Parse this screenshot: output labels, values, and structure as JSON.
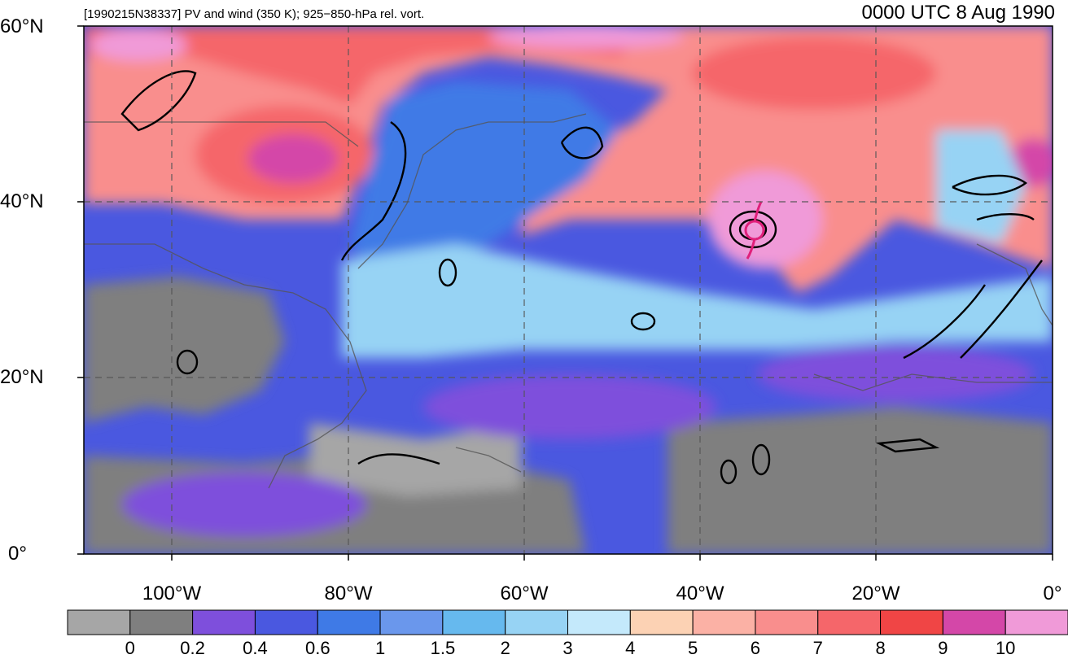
{
  "header": {
    "title": "[1990215N38337] PV and wind (350 K); 925−850-hPa rel. vort.",
    "timestamp": "0000 UTC 8 Aug 1990"
  },
  "map": {
    "lat_labels": [
      "60°N",
      "40°N",
      "20°N",
      "0°"
    ],
    "lon_labels": [
      "100°W",
      "80°W",
      "60°W",
      "40°W",
      "20°W",
      "0°"
    ],
    "field_description_hidden": false,
    "storm_symbol": "tropical-cyclone-icon"
  },
  "colorbar": {
    "labels": [
      "0",
      "0.2",
      "0.4",
      "0.6",
      "1",
      "1.5",
      "2",
      "3",
      "4",
      "5",
      "6",
      "7",
      "8",
      "9",
      "10"
    ],
    "colors": [
      "#a6a6a6",
      "#7f7f7f",
      "#7e4fdc",
      "#4a58e0",
      "#3f7ae6",
      "#6a97ec",
      "#66b9ee",
      "#97d3f4",
      "#c4e9fb",
      "#fcd2b4",
      "#fbb1a5",
      "#f98e8d",
      "#f5666a",
      "#f04545",
      "#d447a8",
      "#f09ad8"
    ]
  }
}
